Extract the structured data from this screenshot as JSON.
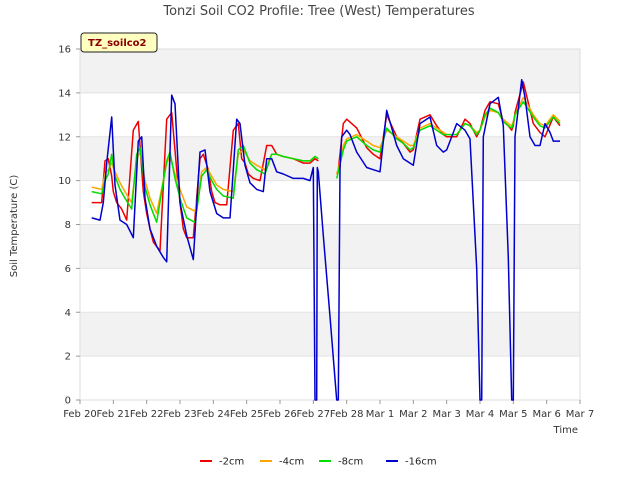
{
  "chart_data": {
    "type": "line",
    "title": "Tonzi Soil CO2 Profile: Tree (West) Temperatures",
    "xlabel": "Time",
    "ylabel": "Soil Temperature (C)",
    "badge": "TZ_soilco2",
    "ylim": [
      0,
      16
    ],
    "yticks": [
      0,
      2,
      4,
      6,
      8,
      10,
      12,
      14,
      16
    ],
    "xlim": [
      0,
      15
    ],
    "xtick_positions": [
      0,
      1,
      2,
      3,
      4,
      5,
      6,
      7,
      8,
      9,
      10,
      11,
      12,
      13,
      14,
      15
    ],
    "xtick_labels": [
      "Feb 20",
      "Feb 21",
      "Feb 22",
      "Feb 23",
      "Feb 24",
      "Feb 25",
      "Feb 26",
      "Feb 27",
      "Feb 28",
      "Mar 1",
      "Mar 2",
      "Mar 3",
      "Mar 4",
      "Mar 5",
      "Mar 6",
      "Mar 7"
    ],
    "grid": "horizontal bands",
    "legend_position": "bottom-center",
    "series": [
      {
        "name": "-2cm",
        "color": "#ee0000",
        "x": [
          0.35,
          0.65,
          0.75,
          0.85,
          0.95,
          1.0,
          1.1,
          1.25,
          1.4,
          1.6,
          1.75,
          1.9,
          2.0,
          2.1,
          2.2,
          2.4,
          2.6,
          2.75,
          2.9,
          3.0,
          3.1,
          3.2,
          3.4,
          3.6,
          3.7,
          3.85,
          3.95,
          4.05,
          4.2,
          4.4,
          4.6,
          4.75,
          4.85,
          4.95,
          5.05,
          5.2,
          5.4,
          5.6,
          5.75,
          5.9,
          6.1,
          6.4,
          6.7,
          6.9,
          7.05,
          7.15,
          null,
          7.7,
          7.75,
          7.9,
          8.0,
          8.3,
          8.6,
          8.8,
          9.0,
          9.2,
          9.5,
          9.7,
          9.9,
          10.0,
          10.2,
          10.5,
          10.7,
          10.9,
          11.0,
          11.3,
          11.55,
          11.7,
          11.9,
          12.0,
          12.15,
          12.3,
          12.55,
          12.7,
          12.85,
          12.95,
          13.0,
          13.05,
          13.3,
          13.6,
          13.8,
          13.95,
          14.2,
          14.4
        ],
        "y": [
          9.0,
          9.0,
          10.9,
          11.0,
          10.2,
          9.5,
          9.0,
          8.7,
          8.2,
          12.3,
          12.7,
          9.5,
          8.5,
          7.8,
          7.2,
          6.8,
          12.8,
          13.1,
          10.5,
          9.0,
          7.8,
          7.4,
          7.4,
          11.0,
          11.2,
          10.5,
          9.5,
          9.0,
          8.9,
          8.9,
          12.3,
          12.6,
          11.0,
          10.8,
          10.3,
          10.1,
          10.0,
          11.6,
          11.6,
          11.2,
          11.1,
          11.0,
          10.8,
          10.8,
          11.0,
          10.9,
          null,
          10.3,
          10.5,
          12.6,
          12.8,
          12.4,
          11.5,
          11.2,
          11.0,
          13.0,
          12.0,
          11.7,
          11.3,
          11.4,
          12.8,
          13.0,
          12.5,
          12.1,
          12.0,
          12.0,
          12.8,
          12.6,
          12.0,
          12.3,
          13.2,
          13.6,
          13.5,
          12.7,
          12.5,
          12.3,
          12.5,
          13.1,
          14.5,
          12.6,
          12.2,
          12.0,
          12.9,
          12.5
        ]
      },
      {
        "name": "-4cm",
        "color": "#ffa500",
        "x": [
          0.35,
          0.65,
          0.75,
          0.85,
          0.95,
          1.05,
          1.2,
          1.35,
          1.55,
          1.7,
          1.8,
          1.95,
          2.1,
          2.3,
          2.6,
          2.7,
          2.85,
          3.0,
          3.2,
          3.45,
          3.65,
          3.8,
          3.95,
          4.1,
          4.3,
          4.6,
          4.75,
          4.9,
          5.1,
          5.3,
          5.55,
          5.75,
          5.9,
          6.1,
          6.4,
          6.7,
          6.9,
          7.05,
          7.15,
          null,
          7.7,
          7.75,
          7.9,
          8.0,
          8.3,
          8.6,
          8.8,
          9.0,
          9.2,
          9.5,
          9.7,
          9.9,
          10.0,
          10.2,
          10.5,
          10.7,
          10.9,
          11.0,
          11.3,
          11.55,
          11.7,
          11.9,
          12.0,
          12.15,
          12.3,
          12.55,
          12.7,
          12.85,
          12.95,
          13.0,
          13.05,
          13.3,
          13.6,
          13.8,
          13.95,
          14.2,
          14.4
        ],
        "y": [
          9.7,
          9.6,
          10.3,
          10.5,
          10.8,
          10.4,
          9.9,
          9.5,
          9.0,
          11.0,
          11.3,
          10.0,
          9.2,
          8.5,
          10.8,
          11.1,
          10.3,
          9.6,
          8.8,
          8.6,
          10.4,
          10.6,
          10.2,
          9.8,
          9.6,
          9.5,
          11.2,
          11.4,
          10.9,
          10.7,
          10.5,
          11.2,
          11.2,
          11.1,
          11.0,
          10.9,
          10.9,
          11.1,
          11.0,
          null,
          10.3,
          10.5,
          11.6,
          11.9,
          12.1,
          11.8,
          11.6,
          11.5,
          12.3,
          12.0,
          11.8,
          11.6,
          11.6,
          12.4,
          12.6,
          12.4,
          12.2,
          12.1,
          12.1,
          12.6,
          12.5,
          12.2,
          12.3,
          12.9,
          13.2,
          13.1,
          12.8,
          12.6,
          12.5,
          12.7,
          13.0,
          13.8,
          13.0,
          12.6,
          12.5,
          13.0,
          12.7
        ]
      },
      {
        "name": "-8cm",
        "color": "#00dd00",
        "x": [
          0.35,
          0.65,
          0.75,
          0.85,
          0.95,
          1.05,
          1.2,
          1.35,
          1.55,
          1.7,
          1.8,
          1.95,
          2.1,
          2.3,
          2.6,
          2.7,
          2.85,
          3.0,
          3.2,
          3.45,
          3.65,
          3.8,
          3.95,
          4.1,
          4.3,
          4.6,
          4.75,
          4.9,
          5.1,
          5.3,
          5.55,
          5.75,
          5.9,
          6.1,
          6.4,
          6.7,
          6.9,
          7.05,
          7.15,
          null,
          7.7,
          7.75,
          7.9,
          8.0,
          8.3,
          8.6,
          8.8,
          9.0,
          9.2,
          9.5,
          9.7,
          9.9,
          10.0,
          10.2,
          10.5,
          10.7,
          10.9,
          11.0,
          11.3,
          11.55,
          11.7,
          11.9,
          12.0,
          12.15,
          12.3,
          12.55,
          12.7,
          12.85,
          12.95,
          13.0,
          13.05,
          13.3,
          13.6,
          13.8,
          13.95,
          14.2,
          14.4
        ],
        "y": [
          9.5,
          9.4,
          10.0,
          10.3,
          11.2,
          10.2,
          9.6,
          9.2,
          8.7,
          11.2,
          11.5,
          9.7,
          8.9,
          8.1,
          10.9,
          11.3,
          10.1,
          9.2,
          8.3,
          8.1,
          10.2,
          10.5,
          10.0,
          9.6,
          9.3,
          9.2,
          11.4,
          11.6,
          10.8,
          10.5,
          10.3,
          11.2,
          11.2,
          11.1,
          11.0,
          10.9,
          10.9,
          11.1,
          11.0,
          null,
          10.1,
          10.4,
          11.4,
          11.8,
          12.0,
          11.6,
          11.4,
          11.3,
          12.4,
          11.9,
          11.7,
          11.4,
          11.5,
          12.3,
          12.5,
          12.3,
          12.1,
          12.1,
          12.1,
          12.6,
          12.5,
          12.1,
          12.3,
          13.0,
          13.3,
          13.1,
          12.7,
          12.5,
          12.4,
          12.6,
          13.0,
          13.6,
          12.9,
          12.5,
          12.4,
          12.9,
          12.6
        ]
      },
      {
        "name": "-16cm",
        "color": "#0000cc",
        "x": [
          0.35,
          0.6,
          0.7,
          0.8,
          0.95,
          1.05,
          1.2,
          1.4,
          1.6,
          1.75,
          1.85,
          1.95,
          2.1,
          2.3,
          2.5,
          2.6,
          2.75,
          2.85,
          3.0,
          3.2,
          3.4,
          3.6,
          3.75,
          3.9,
          4.1,
          4.3,
          4.5,
          4.7,
          4.8,
          4.95,
          5.1,
          5.3,
          5.5,
          5.6,
          5.75,
          5.9,
          6.1,
          6.4,
          6.7,
          6.9,
          6.98,
          7.0,
          7.05,
          7.1,
          7.12,
          7.15,
          7.3,
          7.5,
          7.7,
          7.75,
          7.8,
          7.82,
          7.85,
          8.0,
          8.1,
          8.3,
          8.6,
          8.8,
          9.0,
          9.2,
          9.5,
          9.7,
          9.9,
          10.0,
          10.2,
          10.5,
          10.7,
          10.9,
          11.0,
          11.3,
          11.55,
          11.7,
          11.9,
          12.0,
          12.05,
          12.1,
          12.3,
          12.55,
          12.7,
          12.85,
          12.95,
          13.0,
          13.05,
          13.25,
          13.35,
          13.5,
          13.65,
          13.8,
          13.95,
          14.1,
          14.2,
          14.4
        ],
        "y": [
          8.3,
          8.2,
          9.0,
          10.8,
          12.9,
          9.8,
          8.2,
          8.0,
          7.4,
          11.8,
          12.0,
          9.2,
          7.8,
          7.0,
          6.5,
          6.3,
          13.9,
          13.5,
          9.0,
          7.5,
          6.4,
          11.3,
          11.4,
          9.5,
          8.5,
          8.3,
          8.3,
          12.8,
          12.6,
          10.7,
          9.9,
          9.6,
          9.5,
          11.0,
          11.0,
          10.4,
          10.3,
          10.1,
          10.1,
          10.0,
          10.5,
          10.6,
          0.0,
          0.0,
          10.6,
          10.4,
          7.5,
          3.8,
          0.0,
          0.0,
          10.5,
          11.2,
          12.0,
          12.3,
          12.1,
          11.3,
          10.6,
          10.5,
          10.4,
          13.2,
          11.6,
          11.0,
          10.8,
          10.7,
          12.6,
          12.9,
          11.6,
          11.3,
          11.4,
          12.6,
          12.3,
          11.9,
          6.0,
          0.0,
          0.0,
          12.0,
          13.5,
          13.8,
          12.5,
          6.5,
          0.0,
          0.0,
          12.0,
          14.6,
          13.8,
          12.0,
          11.6,
          11.6,
          12.6,
          12.2,
          11.8,
          11.8
        ]
      }
    ]
  }
}
